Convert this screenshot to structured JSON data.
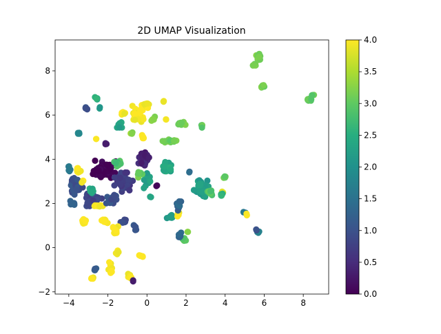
{
  "chart_data": {
    "type": "scatter",
    "title": "2D UMAP Visualization",
    "xlabel": "",
    "ylabel": "",
    "xlim": [
      -4.7,
      9.3
    ],
    "ylim": [
      -2.1,
      9.4
    ],
    "xticks": [
      -4,
      -2,
      0,
      2,
      4,
      6,
      8
    ],
    "yticks": [
      -2,
      0,
      2,
      4,
      6,
      8
    ],
    "grid": false,
    "legend": "none",
    "colormap": "viridis",
    "colorbar": {
      "range": [
        0.0,
        4.0
      ],
      "ticks": [
        "0.0",
        "0.5",
        "1.0",
        "1.5",
        "2.0",
        "2.5",
        "3.0",
        "3.5",
        "4.0"
      ]
    },
    "clusters": [
      {
        "cx": -4.0,
        "cy": 3.6,
        "rx": 0.15,
        "ry": 0.15,
        "n": 5,
        "v": 1.5
      },
      {
        "cx": -3.6,
        "cy": 2.8,
        "rx": 0.45,
        "ry": 0.5,
        "n": 45,
        "v": 1.0
      },
      {
        "cx": -3.5,
        "cy": 3.5,
        "rx": 0.2,
        "ry": 0.15,
        "n": 10,
        "v": 4.0
      },
      {
        "cx": -3.3,
        "cy": 3.0,
        "rx": 0.1,
        "ry": 0.1,
        "n": 4,
        "v": 4.0
      },
      {
        "cx": -2.8,
        "cy": 2.2,
        "rx": 0.6,
        "ry": 0.5,
        "n": 40,
        "v": 0.8
      },
      {
        "cx": -2.9,
        "cy": 2.6,
        "rx": 0.3,
        "ry": 0.2,
        "n": 8,
        "v": 2.4
      },
      {
        "cx": -3.8,
        "cy": 2.0,
        "rx": 0.25,
        "ry": 0.15,
        "n": 10,
        "v": 1.3
      },
      {
        "cx": -3.2,
        "cy": 1.2,
        "rx": 0.15,
        "ry": 0.25,
        "n": 8,
        "v": 4.0
      },
      {
        "cx": -2.5,
        "cy": 1.9,
        "rx": 0.35,
        "ry": 0.1,
        "n": 10,
        "v": 4.0
      },
      {
        "cx": -2.2,
        "cy": 3.5,
        "rx": 0.7,
        "ry": 0.5,
        "n": 50,
        "v": 0.0
      },
      {
        "cx": -2.6,
        "cy": 6.8,
        "rx": 0.15,
        "ry": 0.15,
        "n": 5,
        "v": 2.5
      },
      {
        "cx": -3.1,
        "cy": 6.3,
        "rx": 0.15,
        "ry": 0.15,
        "n": 5,
        "v": 1.0
      },
      {
        "cx": -2.4,
        "cy": 6.3,
        "rx": 0.08,
        "ry": 0.08,
        "n": 2,
        "v": 2.2
      },
      {
        "cx": -3.5,
        "cy": 5.2,
        "rx": 0.1,
        "ry": 0.1,
        "n": 4,
        "v": 1.8
      },
      {
        "cx": -2.6,
        "cy": 4.9,
        "rx": 0.05,
        "ry": 0.05,
        "n": 2,
        "v": 4.0
      },
      {
        "cx": -2.1,
        "cy": 4.7,
        "rx": 0.1,
        "ry": 0.05,
        "n": 3,
        "v": 0.3
      },
      {
        "cx": -1.2,
        "cy": 3.0,
        "rx": 0.6,
        "ry": 0.6,
        "n": 45,
        "v": 0.7
      },
      {
        "cx": -1.5,
        "cy": 3.8,
        "rx": 0.3,
        "ry": 0.2,
        "n": 10,
        "v": 2.8
      },
      {
        "cx": -1.7,
        "cy": 2.2,
        "rx": 0.5,
        "ry": 0.3,
        "n": 20,
        "v": 1.0
      },
      {
        "cx": -1.2,
        "cy": 1.2,
        "rx": 0.3,
        "ry": 0.15,
        "n": 8,
        "v": 1.0
      },
      {
        "cx": -1.6,
        "cy": 0.8,
        "rx": 0.25,
        "ry": 0.3,
        "n": 12,
        "v": 4.0
      },
      {
        "cx": -2.2,
        "cy": 1.2,
        "rx": 0.35,
        "ry": 0.15,
        "n": 10,
        "v": 4.0
      },
      {
        "cx": -1.5,
        "cy": -0.2,
        "rx": 0.15,
        "ry": 0.15,
        "n": 6,
        "v": 4.0
      },
      {
        "cx": -1.9,
        "cy": -0.9,
        "rx": 0.2,
        "ry": 0.35,
        "n": 10,
        "v": 4.0
      },
      {
        "cx": -2.6,
        "cy": -1.0,
        "rx": 0.15,
        "ry": 0.15,
        "n": 5,
        "v": 1.2
      },
      {
        "cx": -2.8,
        "cy": -1.4,
        "rx": 0.15,
        "ry": 0.15,
        "n": 6,
        "v": 4.0
      },
      {
        "cx": -0.9,
        "cy": -1.3,
        "rx": 0.2,
        "ry": 0.2,
        "n": 7,
        "v": 4.0
      },
      {
        "cx": -0.7,
        "cy": -1.5,
        "rx": 0.05,
        "ry": 0.05,
        "n": 2,
        "v": 0.3
      },
      {
        "cx": -0.6,
        "cy": 0.9,
        "rx": 0.1,
        "ry": 0.3,
        "n": 6,
        "v": 1.1
      },
      {
        "cx": -0.3,
        "cy": -0.35,
        "rx": 0.15,
        "ry": 0.1,
        "n": 5,
        "v": 4.0
      },
      {
        "cx": -1.4,
        "cy": 5.5,
        "rx": 0.2,
        "ry": 0.3,
        "n": 10,
        "v": 2.3
      },
      {
        "cx": -1.2,
        "cy": 6.1,
        "rx": 0.3,
        "ry": 0.1,
        "n": 8,
        "v": 4.0
      },
      {
        "cx": -0.5,
        "cy": 6.0,
        "rx": 0.5,
        "ry": 0.7,
        "n": 30,
        "v": 4.0
      },
      {
        "cx": 0.0,
        "cy": 6.5,
        "rx": 0.2,
        "ry": 0.3,
        "n": 12,
        "v": 4.0
      },
      {
        "cx": -0.2,
        "cy": 5.0,
        "rx": 0.15,
        "ry": 0.2,
        "n": 6,
        "v": 4.0
      },
      {
        "cx": -0.8,
        "cy": 5.2,
        "rx": 0.08,
        "ry": 0.08,
        "n": 3,
        "v": 3.3
      },
      {
        "cx": 0.3,
        "cy": 5.8,
        "rx": 0.15,
        "ry": 0.2,
        "n": 6,
        "v": 3.2
      },
      {
        "cx": -0.2,
        "cy": 4.0,
        "rx": 0.4,
        "ry": 0.5,
        "n": 25,
        "v": 0.4
      },
      {
        "cx": 0.0,
        "cy": 3.0,
        "rx": 0.3,
        "ry": 0.4,
        "n": 15,
        "v": 2.3
      },
      {
        "cx": 0.2,
        "cy": 2.3,
        "rx": 0.1,
        "ry": 0.05,
        "n": 3,
        "v": 2.3
      },
      {
        "cx": -0.4,
        "cy": 3.3,
        "rx": 0.2,
        "ry": 0.2,
        "n": 8,
        "v": 3.1
      },
      {
        "cx": 0.5,
        "cy": 2.8,
        "rx": 0.05,
        "ry": 0.05,
        "n": 2,
        "v": 0.2
      },
      {
        "cx": 1.0,
        "cy": 3.6,
        "rx": 0.5,
        "ry": 0.35,
        "n": 20,
        "v": 2.4
      },
      {
        "cx": 1.2,
        "cy": 4.8,
        "rx": 0.6,
        "ry": 0.15,
        "n": 15,
        "v": 3.1
      },
      {
        "cx": 1.8,
        "cy": 5.6,
        "rx": 0.35,
        "ry": 0.1,
        "n": 10,
        "v": 3.1
      },
      {
        "cx": 2.8,
        "cy": 5.5,
        "rx": 0.1,
        "ry": 0.1,
        "n": 5,
        "v": 3.0
      },
      {
        "cx": 0.9,
        "cy": 6.6,
        "rx": 0.1,
        "ry": 0.05,
        "n": 3,
        "v": 4.0
      },
      {
        "cx": 1.0,
        "cy": 5.8,
        "rx": 0.05,
        "ry": 0.05,
        "n": 2,
        "v": 4.0
      },
      {
        "cx": 1.2,
        "cy": 1.4,
        "rx": 0.35,
        "ry": 0.1,
        "n": 10,
        "v": 2.2
      },
      {
        "cx": 1.6,
        "cy": 1.5,
        "rx": 0.15,
        "ry": 0.2,
        "n": 6,
        "v": 4.0
      },
      {
        "cx": 1.6,
        "cy": 2.0,
        "rx": 0.2,
        "ry": 0.4,
        "n": 12,
        "v": 1.3
      },
      {
        "cx": 1.9,
        "cy": 0.4,
        "rx": 0.15,
        "ry": 0.25,
        "n": 8,
        "v": 3.0
      },
      {
        "cx": 1.7,
        "cy": 0.6,
        "rx": 0.15,
        "ry": 0.25,
        "n": 6,
        "v": 1.3
      },
      {
        "cx": 2.1,
        "cy": 0.7,
        "rx": 0.05,
        "ry": 0.05,
        "n": 2,
        "v": 3.3
      },
      {
        "cx": 2.8,
        "cy": 2.7,
        "rx": 0.6,
        "ry": 0.6,
        "n": 35,
        "v": 2.2
      },
      {
        "cx": 3.2,
        "cy": 2.5,
        "rx": 0.3,
        "ry": 0.25,
        "n": 10,
        "v": 2.9
      },
      {
        "cx": 3.9,
        "cy": 2.5,
        "rx": 0.1,
        "ry": 0.1,
        "n": 4,
        "v": 3.8
      },
      {
        "cx": 3.8,
        "cy": 2.4,
        "rx": 0.1,
        "ry": 0.15,
        "n": 5,
        "v": 2.6
      },
      {
        "cx": 4.0,
        "cy": 3.2,
        "rx": 0.15,
        "ry": 0.1,
        "n": 5,
        "v": 3.0
      },
      {
        "cx": 2.2,
        "cy": 3.4,
        "rx": 0.05,
        "ry": 0.05,
        "n": 2,
        "v": 1.3
      },
      {
        "cx": 5.0,
        "cy": 1.6,
        "rx": 0.1,
        "ry": 0.05,
        "n": 3,
        "v": 1.5
      },
      {
        "cx": 5.1,
        "cy": 1.5,
        "rx": 0.05,
        "ry": 0.05,
        "n": 2,
        "v": 4.0
      },
      {
        "cx": 5.7,
        "cy": 0.7,
        "rx": 0.1,
        "ry": 0.05,
        "n": 3,
        "v": 1.8
      },
      {
        "cx": 5.6,
        "cy": 0.8,
        "rx": 0.05,
        "ry": 0.05,
        "n": 2,
        "v": 0.9
      },
      {
        "cx": 5.7,
        "cy": 8.6,
        "rx": 0.15,
        "ry": 0.25,
        "n": 12,
        "v": 3.2
      },
      {
        "cx": 5.5,
        "cy": 8.3,
        "rx": 0.15,
        "ry": 0.15,
        "n": 8,
        "v": 3.2
      },
      {
        "cx": 5.9,
        "cy": 7.3,
        "rx": 0.15,
        "ry": 0.1,
        "n": 8,
        "v": 3.1
      },
      {
        "cx": 8.3,
        "cy": 6.7,
        "rx": 0.2,
        "ry": 0.1,
        "n": 12,
        "v": 3.0
      },
      {
        "cx": 8.5,
        "cy": 6.9,
        "rx": 0.1,
        "ry": 0.05,
        "n": 4,
        "v": 3.0
      }
    ]
  }
}
